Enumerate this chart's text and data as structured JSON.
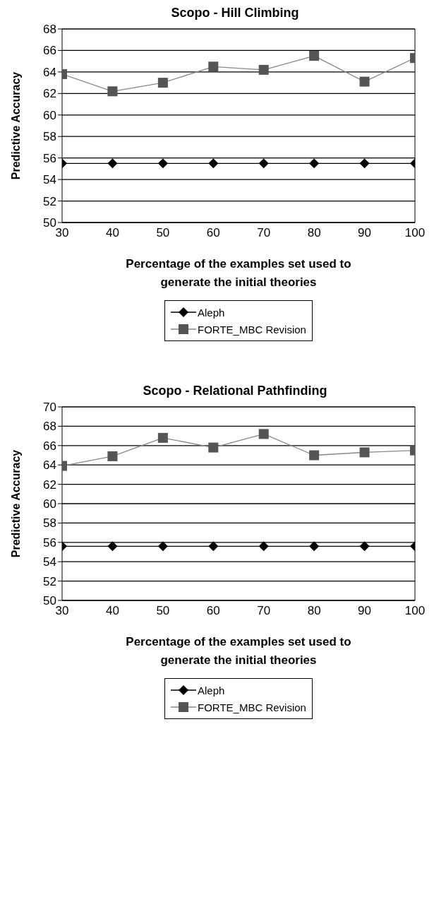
{
  "chart_data": [
    {
      "type": "line",
      "title": "Scopo - Hill Climbing",
      "xlabel": "Percentage of the examples set used to generate the initial theories",
      "ylabel": "Predictive Accuracy",
      "x": [
        30,
        40,
        50,
        60,
        70,
        80,
        90,
        100
      ],
      "series": [
        {
          "name": "Aleph",
          "color": "#000000",
          "marker": "diamond",
          "values": [
            55.5,
            55.5,
            55.5,
            55.5,
            55.5,
            55.5,
            55.5,
            55.5
          ]
        },
        {
          "name": "FORTE_MBC Revision",
          "color": "#555555",
          "marker": "square",
          "values": [
            63.8,
            62.2,
            63.0,
            64.5,
            64.2,
            65.5,
            63.1,
            65.3
          ]
        }
      ],
      "xlim": [
        30,
        100
      ],
      "xticks": [
        30,
        40,
        50,
        60,
        70,
        80,
        90,
        100
      ],
      "ylim": [
        50,
        68
      ],
      "yticks": [
        50,
        52,
        54,
        56,
        58,
        60,
        62,
        64,
        66,
        68
      ],
      "grid": "y",
      "legend": "bottom",
      "line_style": "solid"
    },
    {
      "type": "line",
      "title": "Scopo - Relational Pathfinding",
      "xlabel": "Percentage of the examples set used to generate the initial theories",
      "ylabel": "Predictive Accuracy",
      "x": [
        30,
        40,
        50,
        60,
        70,
        80,
        90,
        100
      ],
      "series": [
        {
          "name": "Aleph",
          "color": "#000000",
          "marker": "diamond",
          "values": [
            55.6,
            55.6,
            55.6,
            55.6,
            55.6,
            55.6,
            55.6,
            55.6
          ]
        },
        {
          "name": "FORTE_MBC Revision",
          "color": "#555555",
          "marker": "square",
          "values": [
            63.9,
            64.9,
            66.8,
            65.8,
            67.2,
            65.0,
            65.3,
            65.5
          ]
        }
      ],
      "xlim": [
        30,
        100
      ],
      "xticks": [
        30,
        40,
        50,
        60,
        70,
        80,
        90,
        100
      ],
      "ylim": [
        50,
        70
      ],
      "yticks": [
        50,
        52,
        54,
        56,
        58,
        60,
        62,
        64,
        66,
        68,
        70
      ],
      "grid": "y",
      "legend": "bottom",
      "line_style": "solid"
    }
  ]
}
